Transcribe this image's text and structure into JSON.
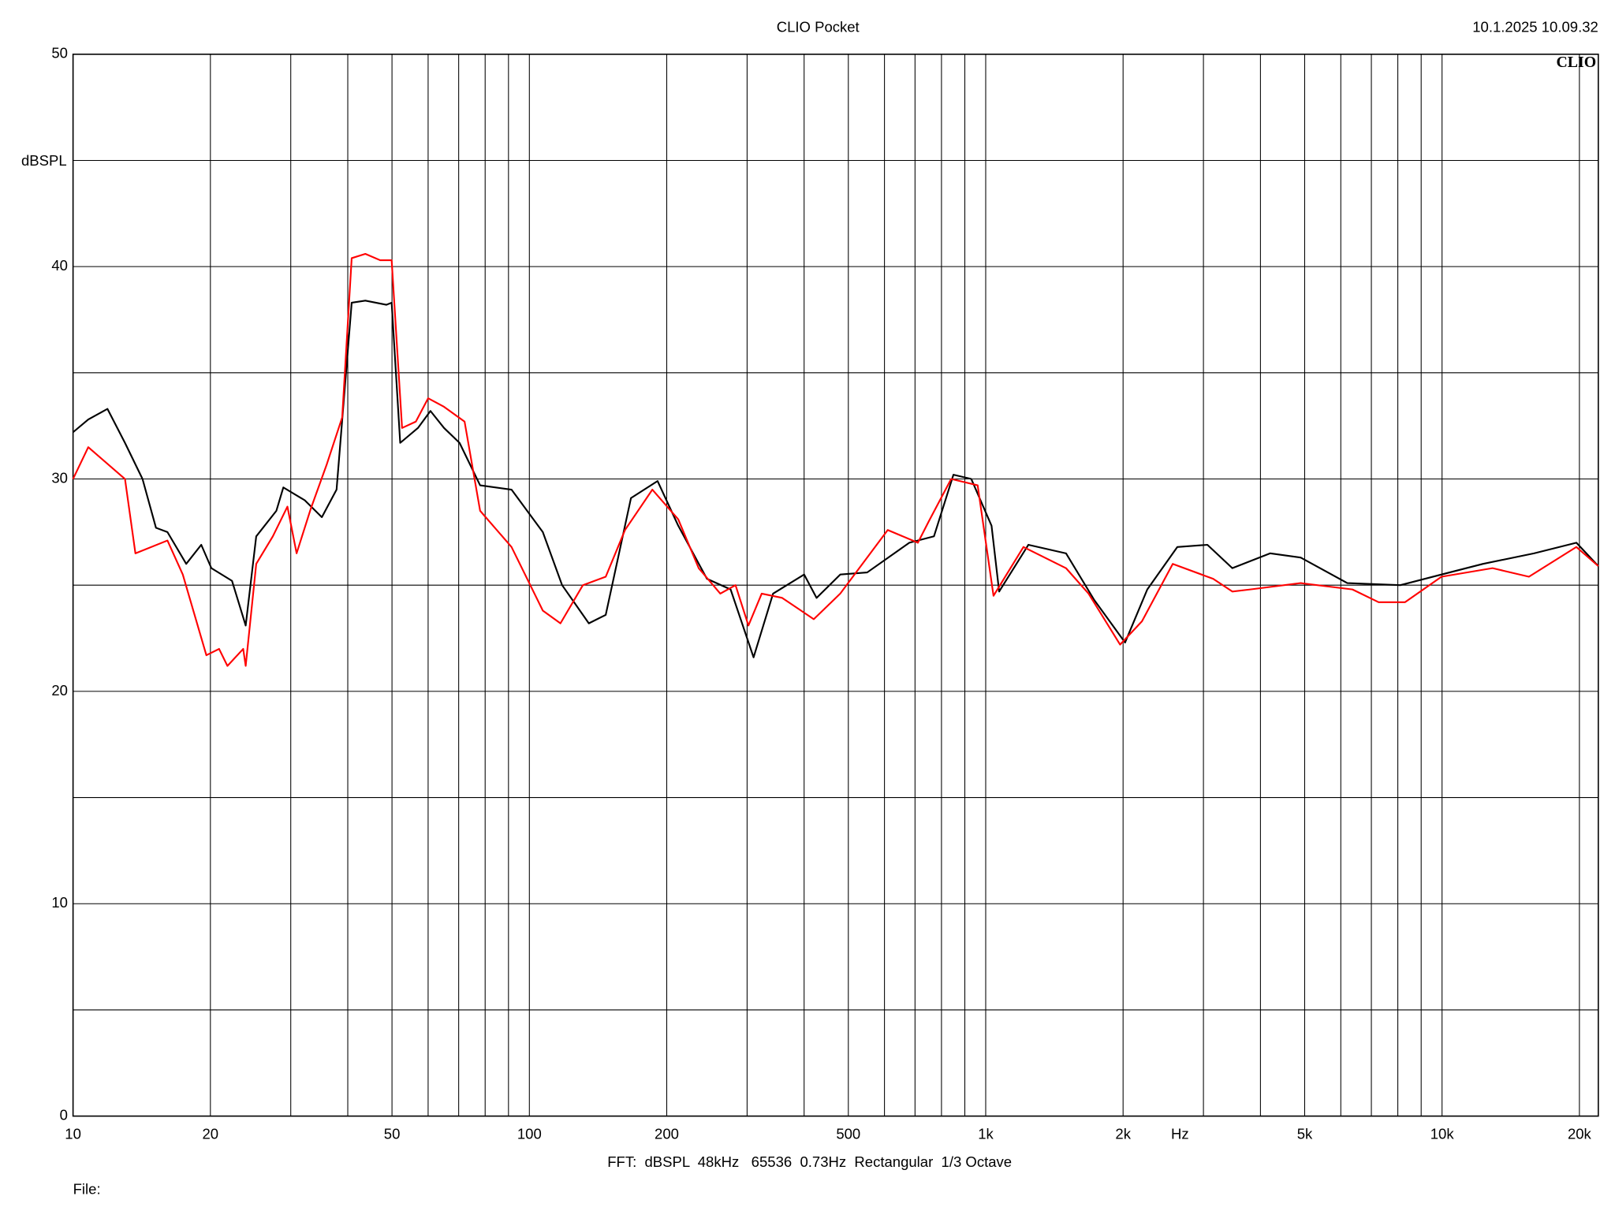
{
  "chart_data": {
    "type": "line",
    "title": "CLIO Pocket",
    "timestamp": "10.1.2025 10.09.32",
    "logo": "CLIO",
    "y_label": "dBSPL",
    "x_label": "Hz",
    "footer": "FFT:  dBSPL  48kHz   65536  0.73Hz  Rectangular  1/3 Octave",
    "file_label": "File:",
    "log_x": true,
    "grid": true,
    "xlim": [
      10,
      22000
    ],
    "ylim": [
      0,
      50
    ],
    "xticks": [
      10,
      20,
      50,
      100,
      200,
      500,
      {
        "value": 1000,
        "label": "1k"
      },
      {
        "value": 2000,
        "label": "2k"
      },
      {
        "value": 5000,
        "label": "5k"
      },
      {
        "value": 10000,
        "label": "10k"
      },
      {
        "value": 20000,
        "label": "20k"
      }
    ],
    "xgrid": [
      30,
      40,
      60,
      70,
      80,
      90,
      300,
      400,
      600,
      700,
      800,
      900,
      3000,
      4000,
      6000,
      7000,
      8000,
      9000
    ],
    "yticks": [
      0,
      10,
      20,
      30,
      40,
      50
    ],
    "ygrid": [
      5,
      15,
      25,
      35,
      45
    ],
    "series": [
      {
        "name": "Black",
        "color": "#000000",
        "x": [
          10,
          10.8,
          11.9,
          13.0,
          14.2,
          15.2,
          16.1,
          17.7,
          19.1,
          20.1,
          22.3,
          23.9,
          25.2,
          27.9,
          28.9,
          32.2,
          35.1,
          37.8,
          40.8,
          43.7,
          48.6,
          49.9,
          52.1,
          57.0,
          60.7,
          65.0,
          70.3,
          78.0,
          91.4,
          107,
          118,
          135,
          147,
          167,
          191,
          212,
          245,
          276,
          310,
          342,
          400,
          426,
          480,
          550,
          680,
          770,
          850,
          930,
          1030,
          1070,
          1240,
          1500,
          1730,
          2020,
          2260,
          2630,
          3060,
          3470,
          4200,
          4900,
          6200,
          8100,
          9970,
          12300,
          15900,
          19700,
          22000
        ],
        "values": [
          32.2,
          32.8,
          33.3,
          31.7,
          30.0,
          27.7,
          27.5,
          26.0,
          26.9,
          25.8,
          25.2,
          23.1,
          27.3,
          28.5,
          29.6,
          29.0,
          28.2,
          29.5,
          38.3,
          38.4,
          38.2,
          38.3,
          31.7,
          32.4,
          33.2,
          32.4,
          31.7,
          29.7,
          29.5,
          27.5,
          25.0,
          23.2,
          23.6,
          29.1,
          29.9,
          27.8,
          25.3,
          24.8,
          21.6,
          24.6,
          25.5,
          24.4,
          25.5,
          25.6,
          27.0,
          27.3,
          30.2,
          30.0,
          27.8,
          24.7,
          26.9,
          26.5,
          24.3,
          22.3,
          24.8,
          26.8,
          26.9,
          25.8,
          26.5,
          26.3,
          25.1,
          25.0,
          25.5,
          26.0,
          26.5,
          27.0,
          25.9
        ]
      },
      {
        "name": "Red",
        "color": "#ff0000",
        "x": [
          10,
          10.8,
          13.0,
          13.7,
          16.1,
          17.4,
          19.6,
          20.9,
          21.8,
          23.6,
          23.9,
          25.2,
          27.4,
          29.5,
          30.9,
          33.2,
          36.0,
          38.9,
          40.8,
          43.7,
          47.1,
          49.9,
          52.6,
          56.4,
          60.0,
          65.0,
          72.1,
          78.0,
          91.4,
          107,
          117,
          131,
          147,
          162,
          186,
          212,
          235,
          262,
          283,
          302,
          323,
          358,
          420,
          480,
          610,
          710,
          750,
          840,
          960,
          1040,
          1210,
          1500,
          1680,
          1970,
          2200,
          2570,
          3150,
          3470,
          3800,
          4900,
          6360,
          7260,
          8300,
          9970,
          12900,
          15500,
          19700,
          22000
        ],
        "values": [
          30.0,
          31.5,
          30.0,
          26.5,
          27.1,
          25.5,
          21.7,
          22.0,
          21.2,
          22.0,
          21.2,
          26.0,
          27.3,
          28.7,
          26.5,
          28.6,
          30.7,
          32.9,
          40.4,
          40.6,
          40.3,
          40.3,
          32.4,
          32.7,
          33.8,
          33.4,
          32.7,
          28.5,
          26.8,
          23.8,
          23.2,
          25.0,
          25.4,
          27.6,
          29.5,
          28.1,
          25.8,
          24.6,
          25.0,
          23.1,
          24.6,
          24.4,
          23.4,
          24.6,
          27.6,
          27.0,
          28.0,
          30.0,
          29.7,
          24.5,
          26.8,
          25.8,
          24.6,
          22.2,
          23.3,
          26.0,
          25.3,
          24.7,
          24.8,
          25.1,
          24.8,
          24.2,
          24.2,
          25.4,
          25.8,
          25.4,
          26.8,
          25.9
        ]
      }
    ]
  }
}
